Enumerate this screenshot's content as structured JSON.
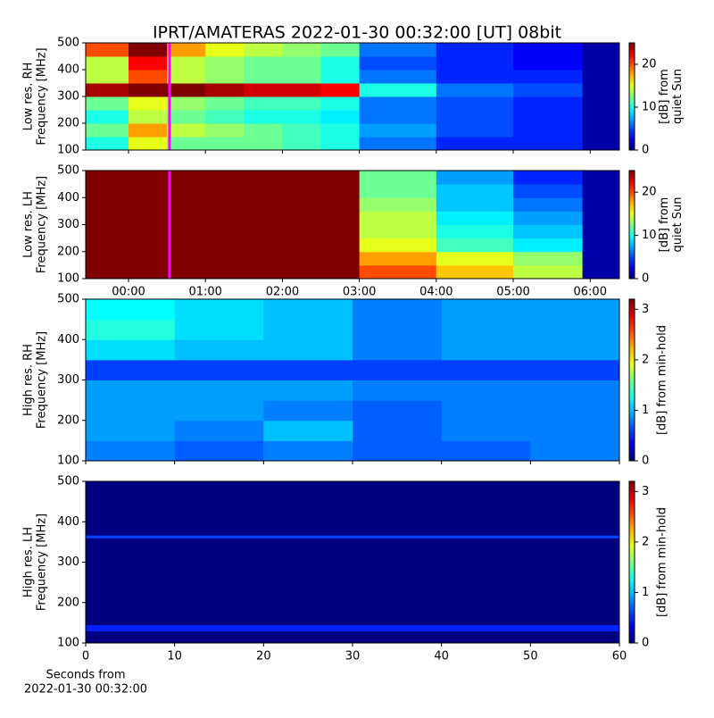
{
  "title": "IPRT/AMATERAS 2022-01-30 00:32:00 [UT]   08bit",
  "xlabel": [
    "Seconds from",
    "2022-01-30 00:32:00"
  ],
  "chart_data": [
    {
      "type": "heatmap",
      "ylabel": [
        "Low res. RH",
        "Frequency [MHz]"
      ],
      "colorbar_label": [
        "[dB] from",
        "quiet Sun"
      ],
      "xbins": [
        -0.557,
        0,
        0.5,
        1,
        1.5,
        2,
        2.5,
        3,
        4,
        5,
        5.9,
        6.38
      ],
      "ybins": [
        100,
        150,
        200,
        250,
        300,
        350,
        400,
        450,
        500
      ],
      "z": [
        [
          10,
          15,
          12,
          12,
          12,
          11,
          10,
          6,
          4,
          4,
          1
        ],
        [
          12,
          18,
          14,
          13,
          12,
          11,
          10,
          7,
          5,
          4,
          1
        ],
        [
          10,
          14,
          12,
          11,
          10,
          10,
          9,
          6,
          5,
          4,
          1
        ],
        [
          12,
          15,
          13,
          12,
          11,
          11,
          10,
          6,
          5,
          4,
          1
        ],
        [
          24,
          25,
          25,
          24,
          23,
          23,
          22,
          10,
          6,
          5,
          1
        ],
        [
          14,
          20,
          14,
          13,
          12,
          12,
          10,
          6,
          4,
          4,
          1
        ],
        [
          14,
          22,
          14,
          13,
          12,
          12,
          10,
          5,
          4,
          3,
          1
        ],
        [
          20,
          25,
          18,
          15,
          14,
          13,
          12,
          6,
          4,
          3,
          1
        ]
      ],
      "xlim": [
        -0.557,
        6.38
      ],
      "xticks": [
        0,
        1,
        2,
        3,
        4,
        5,
        6
      ],
      "show_xticklabels": false,
      "ylim": [
        100,
        500
      ],
      "yticks": [
        100,
        200,
        300,
        400,
        500
      ],
      "zlim": [
        0,
        25
      ],
      "zticks": [
        0,
        10,
        20
      ],
      "marker_x": 0.533,
      "marker_color": "#ff00ff"
    },
    {
      "type": "heatmap",
      "ylabel": [
        "Low res. LH",
        "Frequency [MHz]"
      ],
      "colorbar_label": [
        "[dB] from",
        "quiet Sun"
      ],
      "xbins": [
        -0.557,
        0,
        0.5,
        1,
        1.5,
        2,
        2.5,
        3,
        4,
        5,
        5.9,
        6.38
      ],
      "ybins": [
        100,
        150,
        200,
        250,
        300,
        350,
        400,
        450,
        500
      ],
      "z": [
        [
          25,
          25,
          25,
          25,
          25,
          25,
          25,
          20,
          17,
          14,
          1
        ],
        [
          25,
          25,
          25,
          25,
          25,
          25,
          25,
          18,
          15,
          13,
          1
        ],
        [
          25,
          25,
          25,
          25,
          25,
          25,
          25,
          15,
          11,
          9,
          1
        ],
        [
          25,
          25,
          25,
          25,
          25,
          25,
          25,
          14,
          10,
          8,
          1
        ],
        [
          25,
          25,
          25,
          25,
          25,
          25,
          25,
          14,
          9,
          7,
          1
        ],
        [
          25,
          25,
          25,
          25,
          25,
          25,
          25,
          13,
          8,
          6,
          1
        ],
        [
          25,
          25,
          25,
          25,
          25,
          25,
          25,
          12,
          8,
          5,
          1
        ],
        [
          25,
          25,
          25,
          25,
          25,
          25,
          25,
          12,
          7,
          4,
          1
        ]
      ],
      "xlim": [
        -0.557,
        6.38
      ],
      "xticks": [
        {
          "value": 0,
          "label": "00:00"
        },
        {
          "value": 1,
          "label": "01:00"
        },
        {
          "value": 2,
          "label": "02:00"
        },
        {
          "value": 3,
          "label": "03:00"
        },
        {
          "value": 4,
          "label": "04:00"
        },
        {
          "value": 5,
          "label": "05:00"
        },
        {
          "value": 6,
          "label": "06:00"
        }
      ],
      "show_xticklabels": true,
      "ylim": [
        100,
        500
      ],
      "yticks": [
        100,
        200,
        300,
        400,
        500
      ],
      "zlim": [
        0,
        25
      ],
      "zticks": [
        0,
        10,
        20
      ],
      "marker_x": 0.533,
      "marker_color": "#ff00ff"
    },
    {
      "type": "heatmap",
      "ylabel": [
        "High res. RH",
        "Frequency [MHz]"
      ],
      "colorbar_label": [
        "[dB] from min-hold"
      ],
      "xbins": [
        0,
        10,
        20,
        30,
        40,
        50,
        60
      ],
      "ybins": [
        100,
        150,
        200,
        250,
        300,
        350,
        400,
        450,
        500
      ],
      "z": [
        [
          0.8,
          0.7,
          0.8,
          0.7,
          0.7,
          0.8
        ],
        [
          0.9,
          0.8,
          1.0,
          0.7,
          0.8,
          0.8
        ],
        [
          0.9,
          0.9,
          0.8,
          0.7,
          0.8,
          0.8
        ],
        [
          0.9,
          0.9,
          0.9,
          0.8,
          0.8,
          0.8
        ],
        [
          0.6,
          0.6,
          0.6,
          0.6,
          0.6,
          0.6
        ],
        [
          1.1,
          1.0,
          1.0,
          0.8,
          0.9,
          0.9
        ],
        [
          1.3,
          1.1,
          1.0,
          0.8,
          0.9,
          0.9
        ],
        [
          1.2,
          1.1,
          1.0,
          0.8,
          0.9,
          0.9
        ]
      ],
      "xlim": [
        0,
        60
      ],
      "xticks": [
        0,
        10,
        20,
        30,
        40,
        50,
        60
      ],
      "show_xticklabels": false,
      "ylim": [
        100,
        500
      ],
      "yticks": [
        100,
        200,
        300,
        400,
        500
      ],
      "zlim": [
        0,
        3.2
      ],
      "zticks": [
        0,
        1,
        2,
        3
      ]
    },
    {
      "type": "heatmap",
      "ylabel": [
        "High res. LH",
        "Frequency [MHz]"
      ],
      "colorbar_label": [
        "[dB] from min-hold"
      ],
      "xbins": [
        0,
        10,
        20,
        30,
        40,
        50,
        60
      ],
      "ybins": [
        100,
        130,
        145,
        360,
        367,
        500
      ],
      "z": [
        [
          0,
          0,
          0,
          0,
          0,
          0
        ],
        [
          0.5,
          0.5,
          0.5,
          0.5,
          0.5,
          0.5
        ],
        [
          0,
          0,
          0,
          0,
          0,
          0
        ],
        [
          0.6,
          0.6,
          0.6,
          0.6,
          0.6,
          0.6
        ],
        [
          0,
          0,
          0,
          0,
          0,
          0
        ]
      ],
      "xlim": [
        0,
        60
      ],
      "xticks": [
        0,
        10,
        20,
        30,
        40,
        50,
        60
      ],
      "show_xticklabels": true,
      "ylim": [
        100,
        500
      ],
      "yticks": [
        100,
        200,
        300,
        400,
        500
      ],
      "zlim": [
        0,
        3.2
      ],
      "zticks": [
        0,
        1,
        2,
        3
      ]
    }
  ]
}
